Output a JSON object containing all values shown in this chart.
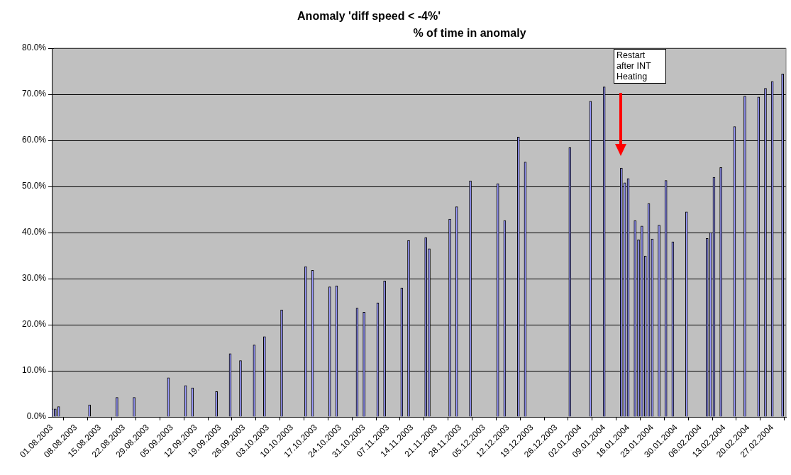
{
  "chart_data": {
    "type": "bar",
    "title": "Anomaly 'diff speed < -4%'",
    "subtitle": "% of time in anomaly",
    "x": [
      "2003-08-01",
      "2003-08-02",
      "2003-08-03",
      "2003-08-12",
      "2003-08-20",
      "2003-08-25",
      "2003-09-04",
      "2003-09-09",
      "2003-09-11",
      "2003-09-18",
      "2003-09-22",
      "2003-09-25",
      "2003-09-29",
      "2003-10-02",
      "2003-10-07",
      "2003-10-14",
      "2003-10-16",
      "2003-10-21",
      "2003-10-23",
      "2003-10-29",
      "2003-10-31",
      "2003-11-04",
      "2003-11-06",
      "2003-11-11",
      "2003-11-13",
      "2003-11-18",
      "2003-11-19",
      "2003-11-25",
      "2003-11-27",
      "2003-12-01",
      "2003-12-09",
      "2003-12-11",
      "2003-12-15",
      "2003-12-17",
      "2003-12-30",
      "2004-01-05",
      "2004-01-09",
      "2004-01-14",
      "2004-01-15",
      "2004-01-16",
      "2004-01-18",
      "2004-01-19",
      "2004-01-20",
      "2004-01-21",
      "2004-01-22",
      "2004-01-23",
      "2004-01-25",
      "2004-01-27",
      "2004-01-29",
      "2004-02-02",
      "2004-02-08",
      "2004-02-09",
      "2004-02-10",
      "2004-02-12",
      "2004-02-16",
      "2004-02-19",
      "2004-02-23",
      "2004-02-25",
      "2004-02-27",
      "2004-03-01"
    ],
    "values": [
      1.7,
      1.7,
      2.2,
      2.6,
      4.2,
      4.2,
      8.5,
      6.8,
      6.3,
      5.5,
      13.7,
      12.2,
      15.6,
      17.4,
      23.2,
      32.6,
      31.8,
      28.2,
      28.4,
      23.6,
      22.7,
      24.7,
      29.5,
      28.0,
      38.3,
      38.9,
      36.5,
      42.9,
      45.6,
      51.2,
      50.6,
      42.6,
      60.7,
      55.3,
      58.4,
      68.5,
      71.6,
      54.0,
      50.8,
      51.7,
      42.6,
      38.4,
      41.4,
      34.9,
      46.3,
      38.6,
      41.6,
      51.3,
      38.0,
      44.5,
      38.7,
      40.0,
      52.0,
      54.1,
      63.0,
      69.6,
      69.4,
      71.3,
      72.8,
      74.4
    ],
    "color": "#9999ff",
    "xlim": [
      "2003-08-01",
      "2004-03-02"
    ],
    "xticks": [
      {
        "value": "2003-08-01",
        "label": "01.08.2003"
      },
      {
        "value": "2003-08-08",
        "label": "08.08.2003"
      },
      {
        "value": "2003-08-15",
        "label": "15.08.2003"
      },
      {
        "value": "2003-08-22",
        "label": "22.08.2003"
      },
      {
        "value": "2003-08-29",
        "label": "29.08.2003"
      },
      {
        "value": "2003-09-05",
        "label": "05.09.2003"
      },
      {
        "value": "2003-09-12",
        "label": "12.09.2003"
      },
      {
        "value": "2003-09-19",
        "label": "19.09.2003"
      },
      {
        "value": "2003-09-26",
        "label": "26.09.2003"
      },
      {
        "value": "2003-10-03",
        "label": "03.10.2003"
      },
      {
        "value": "2003-10-10",
        "label": "10.10.2003"
      },
      {
        "value": "2003-10-17",
        "label": "17.10.2003"
      },
      {
        "value": "2003-10-24",
        "label": "24.10.2003"
      },
      {
        "value": "2003-10-31",
        "label": "31.10.2003"
      },
      {
        "value": "2003-11-07",
        "label": "07.11.2003"
      },
      {
        "value": "2003-11-14",
        "label": "14.11.2003"
      },
      {
        "value": "2003-11-21",
        "label": "21.11.2003"
      },
      {
        "value": "2003-11-28",
        "label": "28.11.2003"
      },
      {
        "value": "2003-12-05",
        "label": "05.12.2003"
      },
      {
        "value": "2003-12-12",
        "label": "12.12.2003"
      },
      {
        "value": "2003-12-19",
        "label": "19.12.2003"
      },
      {
        "value": "2003-12-26",
        "label": "26.12.2003"
      },
      {
        "value": "2004-01-02",
        "label": "02.01.2004"
      },
      {
        "value": "2004-01-09",
        "label": "09.01.2004"
      },
      {
        "value": "2004-01-16",
        "label": "16.01.2004"
      },
      {
        "value": "2004-01-23",
        "label": "23.01.2004"
      },
      {
        "value": "2004-01-30",
        "label": "30.01.2004"
      },
      {
        "value": "2004-02-06",
        "label": "06.02.2004"
      },
      {
        "value": "2004-02-13",
        "label": "13.02.2004"
      },
      {
        "value": "2004-02-20",
        "label": "20.02.2004"
      },
      {
        "value": "2004-02-27",
        "label": "27.02.2004"
      }
    ],
    "ylim": [
      0,
      80
    ],
    "yticks": [
      {
        "value": 0,
        "label": "0.0%"
      },
      {
        "value": 10,
        "label": "10.0%"
      },
      {
        "value": 20,
        "label": "20.0%"
      },
      {
        "value": 30,
        "label": "30.0%"
      },
      {
        "value": 40,
        "label": "40.0%"
      },
      {
        "value": 50,
        "label": "50.0%"
      },
      {
        "value": 60,
        "label": "60.0%"
      },
      {
        "value": 70,
        "label": "70.0%"
      },
      {
        "value": 80,
        "label": "80.0%"
      }
    ],
    "grid": "y",
    "legend": false,
    "annotations": [
      "Restart after INT Heating"
    ]
  }
}
